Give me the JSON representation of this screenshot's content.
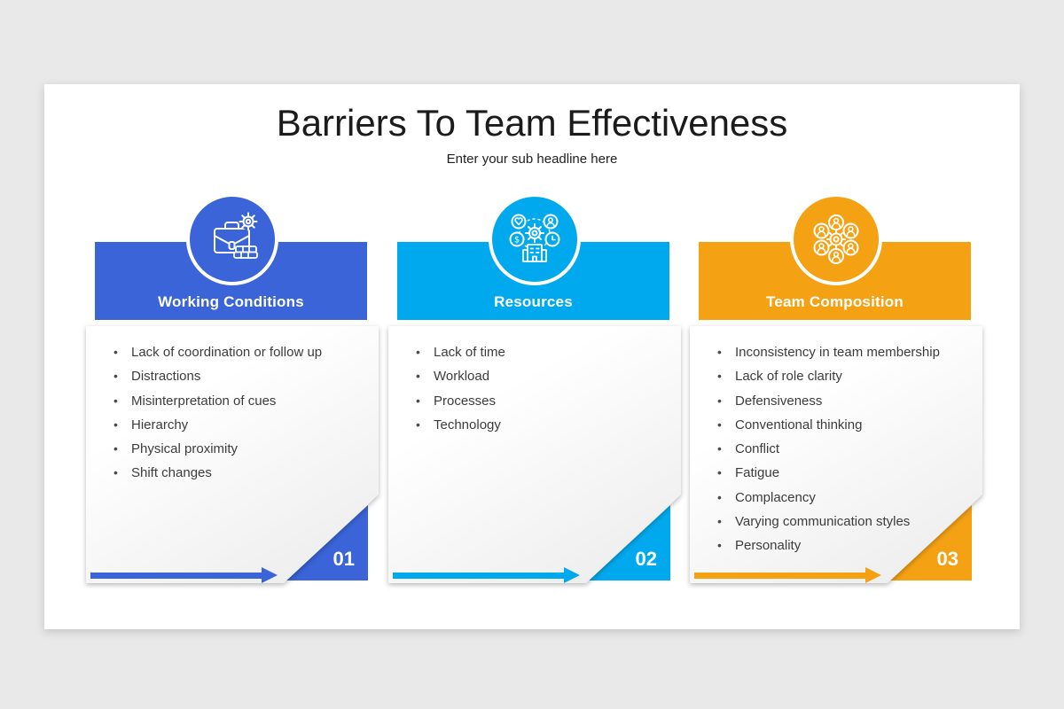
{
  "slide": {
    "title": "Barriers To Team Effectiveness",
    "subtitle": "Enter your sub headline here"
  },
  "columns": [
    {
      "number": "01",
      "title": "Working Conditions",
      "accent": "#3a64d8",
      "icon": "briefcase-gear-coins-icon",
      "items": [
        "Lack of coordination or follow up",
        "Distractions",
        "Misinterpretation of cues",
        "Hierarchy",
        "Physical proximity",
        "Shift changes"
      ]
    },
    {
      "number": "02",
      "title": "Resources",
      "accent": "#00a9ee",
      "icon": "resources-gear-network-icon",
      "items": [
        "Lack of time",
        "Workload",
        "Processes",
        "Technology"
      ]
    },
    {
      "number": "03",
      "title": "Team Composition",
      "accent": "#f5a114",
      "icon": "team-members-gear-icon",
      "items": [
        "Inconsistency in team membership",
        "Lack of role clarity",
        "Defensiveness",
        "Conventional thinking",
        "Conflict",
        "Fatigue",
        "Complacency",
        "Varying communication styles",
        "Personality"
      ]
    }
  ]
}
